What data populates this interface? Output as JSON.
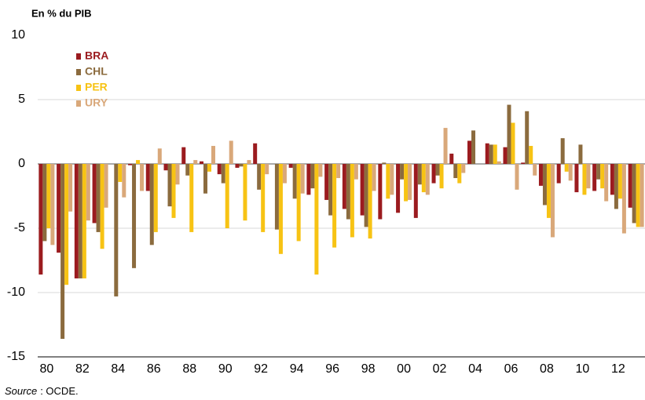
{
  "chart_data": {
    "type": "bar",
    "title": "En % du PIB",
    "categories": [
      "80",
      null,
      "82",
      null,
      "84",
      null,
      "86",
      null,
      "88",
      null,
      "90",
      null,
      "92",
      null,
      "94",
      null,
      "96",
      null,
      "98",
      null,
      "00",
      null,
      "02",
      null,
      "04",
      null,
      "06",
      null,
      "08",
      null,
      "10",
      null,
      "12",
      null
    ],
    "series": [
      {
        "name": "BRA",
        "color": "#9b1b1f",
        "values": [
          -8.6,
          -6.9,
          -8.9,
          -4.6,
          0,
          -0.1,
          -2.1,
          -0.5,
          1.3,
          0.2,
          -0.8,
          -0.3,
          1.6,
          0,
          -0.3,
          -2.4,
          -2.8,
          -3.5,
          -4.0,
          -4.3,
          -3.8,
          -4.2,
          -1.5,
          0.8,
          1.8,
          1.6,
          1.3,
          0.1,
          -1.7,
          -1.5,
          -2.2,
          -2.1,
          -2.4,
          -3.4
        ]
      },
      {
        "name": "CHL",
        "color": "#8b6b3e",
        "values": [
          -6.0,
          -13.6,
          -8.9,
          -5.3,
          -10.3,
          -8.1,
          -6.3,
          -3.3,
          -0.9,
          -2.3,
          -1.5,
          -0.2,
          -2.0,
          -5.1,
          -2.7,
          -1.9,
          -4.0,
          -4.3,
          -4.9,
          0.1,
          -1.2,
          -1.6,
          -0.9,
          -1.1,
          2.6,
          1.5,
          4.6,
          4.1,
          -3.2,
          2.0,
          1.5,
          -1.2,
          -3.5,
          -4.6
        ]
      },
      {
        "name": "PER",
        "color": "#f7c314",
        "values": [
          -5.0,
          -9.4,
          -8.9,
          -6.6,
          -1.4,
          0.3,
          -5.3,
          -4.2,
          -5.3,
          -0.6,
          -5.0,
          -4.4,
          -5.3,
          -7.0,
          -6.0,
          -8.6,
          -6.5,
          -5.7,
          -5.8,
          -2.7,
          -2.9,
          -2.2,
          -1.9,
          -1.5,
          0,
          1.5,
          3.2,
          1.4,
          -4.2,
          -0.6,
          -2.4,
          -1.9,
          -2.7,
          -4.9
        ]
      },
      {
        "name": "URY",
        "color": "#d9a87a",
        "values": [
          -6.3,
          -3.7,
          -4.4,
          -3.4,
          -2.6,
          -2.1,
          1.2,
          -1.6,
          0.3,
          1.4,
          1.8,
          0.3,
          -0.8,
          -1.5,
          -2.3,
          -1.0,
          -1.1,
          -1.2,
          -2.1,
          -2.4,
          -2.8,
          -2.4,
          2.8,
          -0.7,
          0,
          0.2,
          -2.0,
          -0.9,
          -5.7,
          -1.3,
          -1.9,
          -2.9,
          -5.4,
          -4.9
        ]
      }
    ],
    "ylim": [
      -15,
      10
    ],
    "yticks": [
      10,
      5,
      0,
      -5,
      -10,
      -15
    ],
    "grid": true,
    "legend": "top-left",
    "source": {
      "label": "Source",
      "text": ": OCDE."
    }
  }
}
